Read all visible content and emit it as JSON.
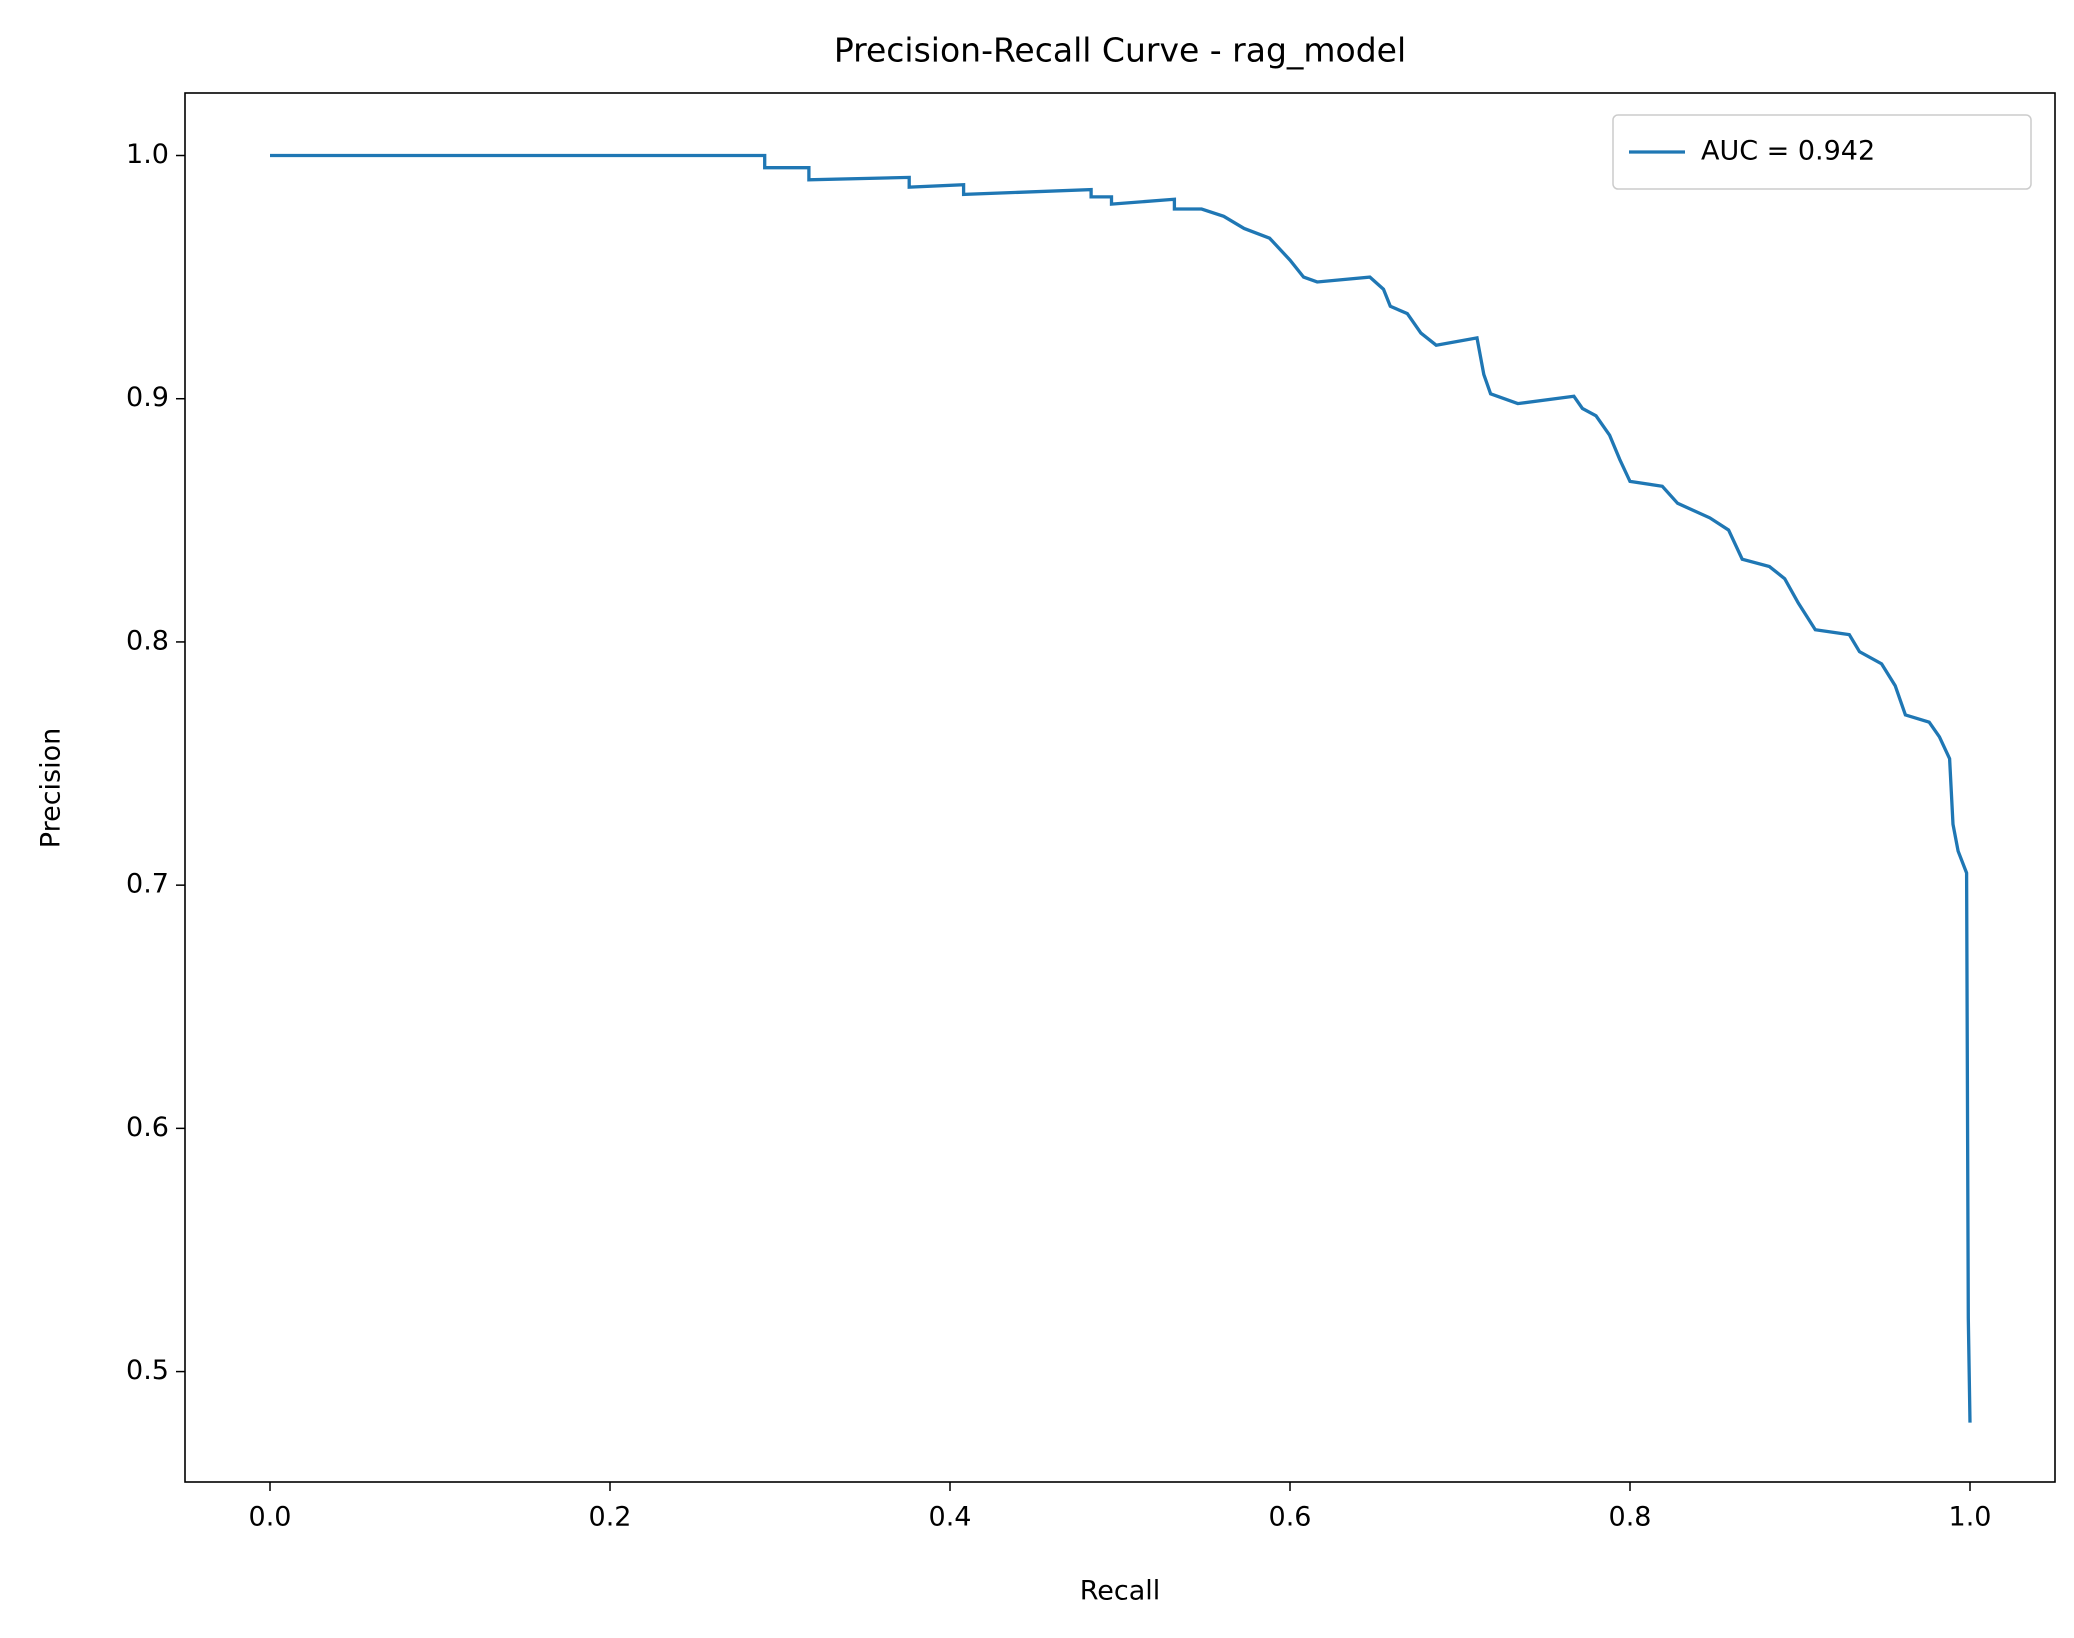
{
  "chart_data": {
    "type": "line",
    "title": "Precision-Recall Curve - rag_model",
    "x_label": "Recall",
    "y_label": "Precision",
    "xlim": [
      -0.05,
      1.05
    ],
    "xticks": [
      {
        "value": 0,
        "label": "0.0"
      },
      0.2,
      0.4,
      0.6,
      0.8,
      {
        "value": 1,
        "label": "1.0"
      }
    ],
    "ylim": [
      0.4546,
      1.0257
    ],
    "yticks": [
      0.5,
      0.6,
      0.7,
      0.8,
      0.9,
      {
        "value": 1,
        "label": "1.0"
      }
    ],
    "grid": false,
    "legend": "upper right",
    "x": [
      0,
      0.291,
      0.291,
      0.317,
      0.317,
      0.376,
      0.376,
      0.408,
      0.408,
      0.483,
      0.483,
      0.495,
      0.495,
      0.532,
      0.532,
      0.548,
      0.561,
      0.573,
      0.588,
      0.6,
      0.608,
      0.616,
      0.647,
      0.655,
      0.659,
      0.669,
      0.677,
      0.686,
      0.71,
      0.714,
      0.718,
      0.734,
      0.767,
      0.772,
      0.78,
      0.788,
      0.794,
      0.8,
      0.819,
      0.828,
      0.847,
      0.858,
      0.866,
      0.882,
      0.891,
      0.899,
      0.909,
      0.929,
      0.935,
      0.948,
      0.956,
      0.962,
      0.976,
      0.982,
      0.988,
      0.99,
      0.993,
      0.998,
      0.999,
      1.0
    ],
    "series": [
      {
        "name": "AUC = 0.942",
        "color": "#1f77b4",
        "values": [
          1.0,
          1.0,
          0.995,
          0.995,
          0.99,
          0.991,
          0.987,
          0.988,
          0.984,
          0.986,
          0.983,
          0.983,
          0.98,
          0.982,
          0.978,
          0.978,
          0.975,
          0.97,
          0.966,
          0.957,
          0.95,
          0.948,
          0.95,
          0.945,
          0.938,
          0.935,
          0.927,
          0.922,
          0.925,
          0.91,
          0.902,
          0.898,
          0.901,
          0.896,
          0.893,
          0.885,
          0.875,
          0.866,
          0.864,
          0.857,
          0.851,
          0.846,
          0.834,
          0.831,
          0.826,
          0.816,
          0.805,
          0.803,
          0.796,
          0.791,
          0.782,
          0.77,
          0.767,
          0.761,
          0.752,
          0.725,
          0.714,
          0.705,
          0.522,
          0.479
        ]
      }
    ]
  }
}
